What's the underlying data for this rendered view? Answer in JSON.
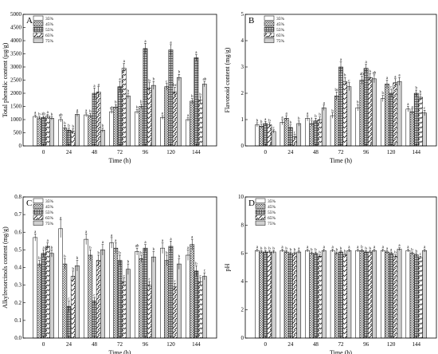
{
  "figure": {
    "legend_labels": [
      "35%",
      "45%",
      "55%",
      "65%",
      "75%"
    ],
    "x_label": "Time (h)"
  },
  "chart_data": [
    {
      "type": "bar",
      "panel_label": "A",
      "ylabel": "Total phenolic content (µg/g)",
      "xlabel": "Time (h)",
      "categories": [
        "0",
        "24",
        "48",
        "72",
        "96",
        "120",
        "144"
      ],
      "ylim": [
        0,
        5000
      ],
      "yticks": [
        0,
        500,
        1000,
        1500,
        2000,
        2500,
        3000,
        3500,
        4000,
        4500,
        5000
      ],
      "grid": false,
      "legend_position": "top-left",
      "series": [
        {
          "name": "35%",
          "values": [
            1120,
            1000,
            1180,
            1300,
            1300,
            1080,
            1000
          ],
          "errors": [
            60,
            90,
            80,
            70,
            80,
            70,
            70
          ],
          "labels": [
            "a",
            "ab",
            "a",
            "ab",
            "b",
            "e",
            "a"
          ]
        },
        {
          "name": "45%",
          "values": [
            1060,
            680,
            1150,
            1480,
            1500,
            2250,
            1700
          ],
          "errors": [
            60,
            100,
            80,
            90,
            90,
            120,
            100
          ],
          "labels": [
            "b",
            "b",
            "b",
            "b",
            "b",
            "c",
            "b"
          ]
        },
        {
          "name": "55%",
          "values": [
            1080,
            600,
            2000,
            2250,
            3700,
            3650,
            3350
          ],
          "errors": [
            60,
            80,
            200,
            200,
            200,
            200,
            120
          ],
          "labels": [
            "ab",
            "b",
            "a",
            "a",
            "a",
            "a",
            "a"
          ]
        },
        {
          "name": "65%",
          "values": [
            1130,
            550,
            2050,
            2950,
            2200,
            2050,
            1750
          ],
          "errors": [
            60,
            100,
            200,
            180,
            200,
            180,
            120
          ],
          "labels": [
            "a",
            "b",
            "a",
            "a",
            "b",
            "bc",
            "b"
          ]
        },
        {
          "name": "75%",
          "values": [
            1050,
            1200,
            600,
            1900,
            2300,
            2600,
            2350
          ],
          "errors": [
            60,
            80,
            80,
            100,
            150,
            120,
            100
          ],
          "labels": [
            "b",
            "a",
            "b",
            "b",
            "b",
            "b",
            "ab"
          ]
        }
      ]
    },
    {
      "type": "bar",
      "panel_label": "B",
      "ylabel": "Flavonoid content (mg/g)",
      "xlabel": "Time (h)",
      "categories": [
        "0",
        "24",
        "48",
        "72",
        "96",
        "120",
        "144"
      ],
      "ylim": [
        0,
        5
      ],
      "yticks": [
        0,
        1,
        2,
        3,
        4,
        5
      ],
      "grid": false,
      "legend_position": "top-right",
      "series": [
        {
          "name": "35%",
          "values": [
            0.8,
            0.9,
            1.05,
            1.15,
            1.45,
            1.8,
            1.4
          ],
          "errors": [
            0.08,
            0.1,
            0.1,
            0.1,
            0.12,
            0.12,
            0.1
          ],
          "labels": [
            "b",
            "a",
            "a",
            "b",
            "b",
            "b",
            "a"
          ]
        },
        {
          "name": "45%",
          "values": [
            0.75,
            1.05,
            0.85,
            1.9,
            2.5,
            2.35,
            1.3
          ],
          "errors": [
            0.08,
            0.1,
            0.1,
            0.15,
            0.15,
            0.15,
            0.1
          ],
          "labels": [
            "b",
            "a",
            "a",
            "bc",
            "ab",
            "a",
            "a"
          ]
        },
        {
          "name": "55%",
          "values": [
            0.85,
            0.7,
            0.95,
            3.0,
            2.95,
            2.0,
            2.0
          ],
          "errors": [
            0.08,
            0.1,
            0.1,
            0.2,
            0.15,
            0.15,
            0.12
          ],
          "labels": [
            "a",
            "b",
            "b",
            "a",
            "a",
            "c",
            "b"
          ]
        },
        {
          "name": "65%",
          "values": [
            0.8,
            0.35,
            1.0,
            2.45,
            2.6,
            2.4,
            1.85
          ],
          "errors": [
            0.08,
            0.08,
            0.1,
            0.15,
            0.15,
            0.15,
            0.12
          ],
          "labels": [
            "b",
            "c",
            "b",
            "b",
            "b",
            "a",
            "b"
          ]
        },
        {
          "name": "75%",
          "values": [
            0.55,
            0.85,
            1.45,
            2.25,
            2.55,
            2.45,
            1.25
          ],
          "errors": [
            0.06,
            0.1,
            0.1,
            0.15,
            0.15,
            0.15,
            0.1
          ],
          "labels": [
            "c",
            "b",
            "a",
            "c",
            "ab",
            "a",
            "c"
          ]
        }
      ]
    },
    {
      "type": "bar",
      "panel_label": "C",
      "ylabel": "Alkylresorcinols content (mg/g)",
      "xlabel": "Time (h)",
      "categories": [
        "0",
        "24",
        "48",
        "72",
        "96",
        "120",
        "144"
      ],
      "ylim": [
        0,
        0.8
      ],
      "yticks": [
        0.0,
        0.1,
        0.2,
        0.3,
        0.4,
        0.5,
        0.6,
        0.7,
        0.8
      ],
      "grid": false,
      "legend_position": "top-left",
      "series": [
        {
          "name": "35%",
          "values": [
            0.57,
            0.62,
            0.56,
            0.54,
            0.49,
            0.51,
            0.47
          ],
          "errors": [
            0.02,
            0.05,
            0.03,
            0.03,
            0.02,
            0.03,
            0.03
          ],
          "labels": [
            "a",
            "a",
            "a",
            "a",
            "ab",
            "a",
            "a"
          ]
        },
        {
          "name": "45%",
          "values": [
            0.42,
            0.42,
            0.47,
            0.51,
            0.45,
            0.44,
            0.53
          ],
          "errors": [
            0.02,
            0.03,
            0.03,
            0.03,
            0.02,
            0.03,
            0.03
          ],
          "labels": [
            "b",
            "b",
            "b",
            "a",
            "b",
            "b",
            "a"
          ]
        },
        {
          "name": "55%",
          "values": [
            0.48,
            0.18,
            0.21,
            0.44,
            0.51,
            0.52,
            0.38
          ],
          "errors": [
            0.02,
            0.03,
            0.02,
            0.03,
            0.02,
            0.03,
            0.03
          ],
          "labels": [
            "a",
            "c",
            "c",
            "b",
            "a",
            "a",
            "b"
          ]
        },
        {
          "name": "65%",
          "values": [
            0.52,
            0.35,
            0.44,
            0.32,
            0.3,
            0.29,
            0.32
          ],
          "errors": [
            0.02,
            0.03,
            0.03,
            0.02,
            0.02,
            0.02,
            0.02
          ],
          "labels": [
            "a",
            "b",
            "b",
            "c",
            "c",
            "c",
            "c"
          ]
        },
        {
          "name": "75%",
          "values": [
            0.48,
            0.41,
            0.5,
            0.39,
            0.46,
            0.42,
            0.35
          ],
          "errors": [
            0.02,
            0.03,
            0.03,
            0.03,
            0.03,
            0.03,
            0.02
          ],
          "labels": [
            "b",
            "b",
            "a",
            "b",
            "b",
            "b",
            "c"
          ]
        }
      ]
    },
    {
      "type": "bar",
      "panel_label": "D",
      "ylabel": "pH",
      "xlabel": "Time (h)",
      "categories": [
        "0",
        "24",
        "48",
        "72",
        "96",
        "120",
        "144"
      ],
      "ylim": [
        0,
        10
      ],
      "yticks": [
        0,
        2,
        4,
        6,
        8,
        10
      ],
      "grid": false,
      "legend_position": "top-left",
      "series": [
        {
          "name": "35%",
          "values": [
            6.2,
            6.2,
            6.2,
            6.2,
            6.2,
            6.2,
            6.2
          ],
          "errors": [
            0.1,
            0.1,
            0.1,
            0.1,
            0.1,
            0.1,
            0.1
          ],
          "labels": [
            "a",
            "a",
            "a",
            "a",
            "a",
            "a",
            "a"
          ]
        },
        {
          "name": "45%",
          "values": [
            6.1,
            6.1,
            6.0,
            6.0,
            6.2,
            6.1,
            6.0
          ],
          "errors": [
            0.1,
            0.1,
            0.1,
            0.1,
            0.1,
            0.1,
            0.1
          ],
          "labels": [
            "b",
            "b",
            "b",
            "b",
            "b",
            "a",
            "b"
          ]
        },
        {
          "name": "55%",
          "values": [
            6.1,
            6.0,
            6.0,
            6.1,
            6.1,
            6.0,
            5.9
          ],
          "errors": [
            0.1,
            0.1,
            0.1,
            0.1,
            0.1,
            0.1,
            0.1
          ],
          "labels": [
            "b",
            "b",
            "b",
            "b",
            "b",
            "a",
            "b"
          ]
        },
        {
          "name": "65%",
          "values": [
            6.1,
            6.0,
            5.8,
            5.9,
            6.1,
            5.8,
            5.7
          ],
          "errors": [
            0.1,
            0.1,
            0.1,
            0.1,
            0.1,
            0.1,
            0.1
          ],
          "labels": [
            "b",
            "b",
            "b",
            "b",
            "b",
            "b",
            "c"
          ]
        },
        {
          "name": "75%",
          "values": [
            6.1,
            6.1,
            6.2,
            6.2,
            6.2,
            6.3,
            6.2
          ],
          "errors": [
            0.1,
            0.1,
            0.1,
            0.1,
            0.1,
            0.1,
            0.1
          ],
          "labels": [
            "b",
            "a",
            "a",
            "a",
            "a",
            "a",
            "a"
          ]
        }
      ]
    }
  ]
}
